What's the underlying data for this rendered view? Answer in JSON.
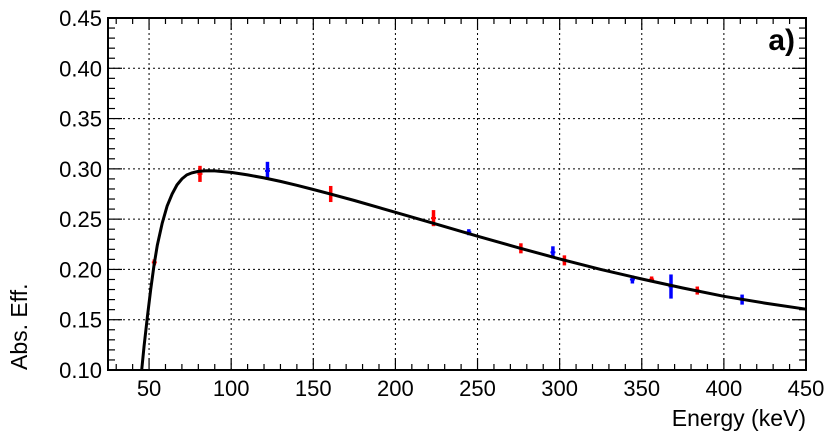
{
  "chart_data": {
    "type": "scatter",
    "panel_label": "a)",
    "xlabel": "Energy (keV)",
    "ylabel": "Abs. Eff.",
    "xlim": [
      25,
      450
    ],
    "ylim": [
      0.1,
      0.45
    ],
    "grid": true,
    "x_ticks": [
      50,
      100,
      150,
      200,
      250,
      300,
      350,
      400,
      450
    ],
    "x_tick_labels": [
      "50",
      "100",
      "150",
      "200",
      "250",
      "300",
      "350",
      "400",
      "450"
    ],
    "y_ticks": [
      0.1,
      0.15,
      0.2,
      0.25,
      0.3,
      0.35,
      0.4,
      0.45
    ],
    "y_tick_labels": [
      "0.10",
      "0.15",
      "0.20",
      "0.25",
      "0.30",
      "0.35",
      "0.40",
      "0.45"
    ],
    "series": [
      {
        "name": "red",
        "color": "#ff0000",
        "points": [
          {
            "x": 53.2,
            "y": 0.207,
            "err": 0.003
          },
          {
            "x": 81.0,
            "y": 0.295,
            "err": 0.008
          },
          {
            "x": 160.6,
            "y": 0.275,
            "err": 0.008
          },
          {
            "x": 223.2,
            "y": 0.251,
            "err": 0.008
          },
          {
            "x": 276.4,
            "y": 0.221,
            "err": 0.005
          },
          {
            "x": 302.9,
            "y": 0.209,
            "err": 0.005
          },
          {
            "x": 356.0,
            "y": 0.19,
            "err": 0.003
          },
          {
            "x": 383.8,
            "y": 0.179,
            "err": 0.004
          }
        ]
      },
      {
        "name": "blue",
        "color": "#0000ff",
        "points": [
          {
            "x": 122.1,
            "y": 0.298,
            "err": 0.009
          },
          {
            "x": 244.7,
            "y": 0.237,
            "err": 0.003
          },
          {
            "x": 295.9,
            "y": 0.217,
            "err": 0.006
          },
          {
            "x": 344.3,
            "y": 0.19,
            "err": 0.004
          },
          {
            "x": 367.8,
            "y": 0.183,
            "err": 0.012
          },
          {
            "x": 411.1,
            "y": 0.17,
            "err": 0.005
          }
        ]
      }
    ],
    "fit_curve": {
      "color": "#000000",
      "x": [
        45.5,
        47,
        49,
        51,
        53,
        55,
        58,
        61,
        64,
        67,
        70,
        73,
        76,
        80,
        85,
        90,
        100,
        110,
        120,
        130,
        140,
        150,
        160,
        175,
        190,
        200,
        225,
        250,
        275,
        300,
        325,
        350,
        375,
        400,
        425,
        450
      ],
      "y": [
        0.1,
        0.124,
        0.153,
        0.18,
        0.204,
        0.224,
        0.246,
        0.263,
        0.275,
        0.284,
        0.29,
        0.294,
        0.296,
        0.2975,
        0.2982,
        0.298,
        0.2965,
        0.294,
        0.291,
        0.2875,
        0.2837,
        0.2795,
        0.2752,
        0.2685,
        0.2615,
        0.2568,
        0.245,
        0.233,
        0.2215,
        0.2105,
        0.2,
        0.1905,
        0.1815,
        0.1733,
        0.1665,
        0.1605
      ]
    }
  }
}
